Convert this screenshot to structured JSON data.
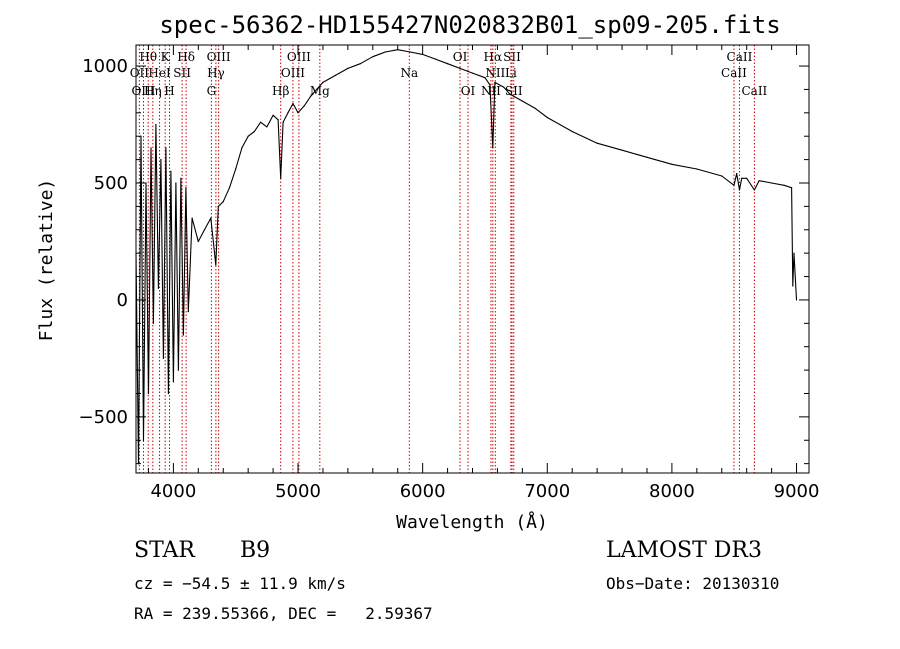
{
  "chart_data": {
    "type": "line",
    "title": "spec-56362-HD155427N020832B01_sp09-205.fits",
    "xlabel": "Wavelength (Å)",
    "ylabel": "Flux (relative)",
    "xlim": [
      3700,
      9100
    ],
    "ylim": [
      -740,
      1090
    ],
    "xticks": [
      4000,
      5000,
      6000,
      7000,
      8000,
      9000
    ],
    "yticks": [
      -500,
      0,
      500,
      1000
    ],
    "series": [
      {
        "name": "flux",
        "x": [
          3700,
          3720,
          3740,
          3760,
          3780,
          3800,
          3820,
          3840,
          3860,
          3880,
          3900,
          3920,
          3940,
          3960,
          3980,
          4000,
          4020,
          4040,
          4060,
          4080,
          4100,
          4120,
          4150,
          4200,
          4250,
          4300,
          4340,
          4360,
          4400,
          4450,
          4500,
          4550,
          4600,
          4650,
          4700,
          4750,
          4800,
          4840,
          4861,
          4880,
          4920,
          4960,
          5000,
          5050,
          5100,
          5150,
          5200,
          5300,
          5400,
          5500,
          5600,
          5700,
          5800,
          5900,
          6000,
          6100,
          6200,
          6300,
          6400,
          6500,
          6540,
          6563,
          6580,
          6650,
          6700,
          6800,
          6900,
          7000,
          7200,
          7400,
          7600,
          7800,
          8000,
          8200,
          8400,
          8498,
          8520,
          8542,
          8560,
          8600,
          8662,
          8700,
          8800,
          8900,
          8960,
          8970,
          8980,
          9000
        ],
        "y": [
          200,
          -700,
          700,
          -600,
          500,
          -400,
          650,
          -100,
          750,
          50,
          600,
          -250,
          650,
          -400,
          550,
          -350,
          500,
          -300,
          520,
          -150,
          480,
          -50,
          350,
          250,
          300,
          350,
          150,
          400,
          420,
          480,
          560,
          650,
          700,
          720,
          760,
          740,
          790,
          770,
          520,
          760,
          800,
          840,
          800,
          830,
          870,
          900,
          930,
          960,
          990,
          1010,
          1040,
          1060,
          1070,
          1060,
          1050,
          1030,
          1010,
          990,
          970,
          950,
          920,
          650,
          930,
          910,
          880,
          850,
          820,
          780,
          720,
          670,
          640,
          610,
          580,
          560,
          530,
          490,
          540,
          470,
          520,
          520,
          470,
          510,
          500,
          490,
          480,
          60,
          200,
          0
        ]
      }
    ],
    "spectral_lines": [
      {
        "name": "Hθ",
        "wavelength": 3798,
        "row": 1
      },
      {
        "name": "OII",
        "wavelength": 3727,
        "row": 2
      },
      {
        "name": "OIII",
        "wavelength": 3760,
        "row": 3
      },
      {
        "name": "Hη",
        "wavelength": 3835,
        "row": 3
      },
      {
        "name": "HeI",
        "wavelength": 3889,
        "row": 2
      },
      {
        "name": "K",
        "wavelength": 3934,
        "row": 1
      },
      {
        "name": "H",
        "wavelength": 3969,
        "row": 3
      },
      {
        "name": "SII",
        "wavelength": 4070,
        "row": 2
      },
      {
        "name": "Hδ",
        "wavelength": 4102,
        "row": 1
      },
      {
        "name": "OIII",
        "wavelength": 4363,
        "row": 1
      },
      {
        "name": "Hγ",
        "wavelength": 4341,
        "row": 2
      },
      {
        "name": "G",
        "wavelength": 4305,
        "row": 3
      },
      {
        "name": "Hβ",
        "wavelength": 4861,
        "row": 3
      },
      {
        "name": "OIII",
        "wavelength": 5007,
        "row": 1
      },
      {
        "name": "OIII",
        "wavelength": 4959,
        "row": 2
      },
      {
        "name": "Mg",
        "wavelength": 5175,
        "row": 3
      },
      {
        "name": "Na",
        "wavelength": 5893,
        "row": 2
      },
      {
        "name": "OI",
        "wavelength": 6300,
        "row": 1
      },
      {
        "name": "OI",
        "wavelength": 6364,
        "row": 3
      },
      {
        "name": "Hα",
        "wavelength": 6563,
        "row": 1
      },
      {
        "name": "NII",
        "wavelength": 6583,
        "row": 2
      },
      {
        "name": "NII",
        "wavelength": 6548,
        "row": 3
      },
      {
        "name": "SII",
        "wavelength": 6717,
        "row": 1
      },
      {
        "name": "Li",
        "wavelength": 6708,
        "row": 2
      },
      {
        "name": "SII",
        "wavelength": 6731,
        "row": 3
      },
      {
        "name": "CaII",
        "wavelength": 8542,
        "row": 1
      },
      {
        "name": "CaII",
        "wavelength": 8498,
        "row": 2
      },
      {
        "name": "CaII",
        "wavelength": 8662,
        "row": 3
      }
    ]
  },
  "info": {
    "class_label": "STAR",
    "subclass": "B9",
    "survey": "LAMOST DR3",
    "cz": "cz = −54.5 ± 11.9 km/s",
    "obs_date": "Obs−Date: 20130310",
    "coords": "RA = 239.55366, DEC =   2.59367"
  }
}
